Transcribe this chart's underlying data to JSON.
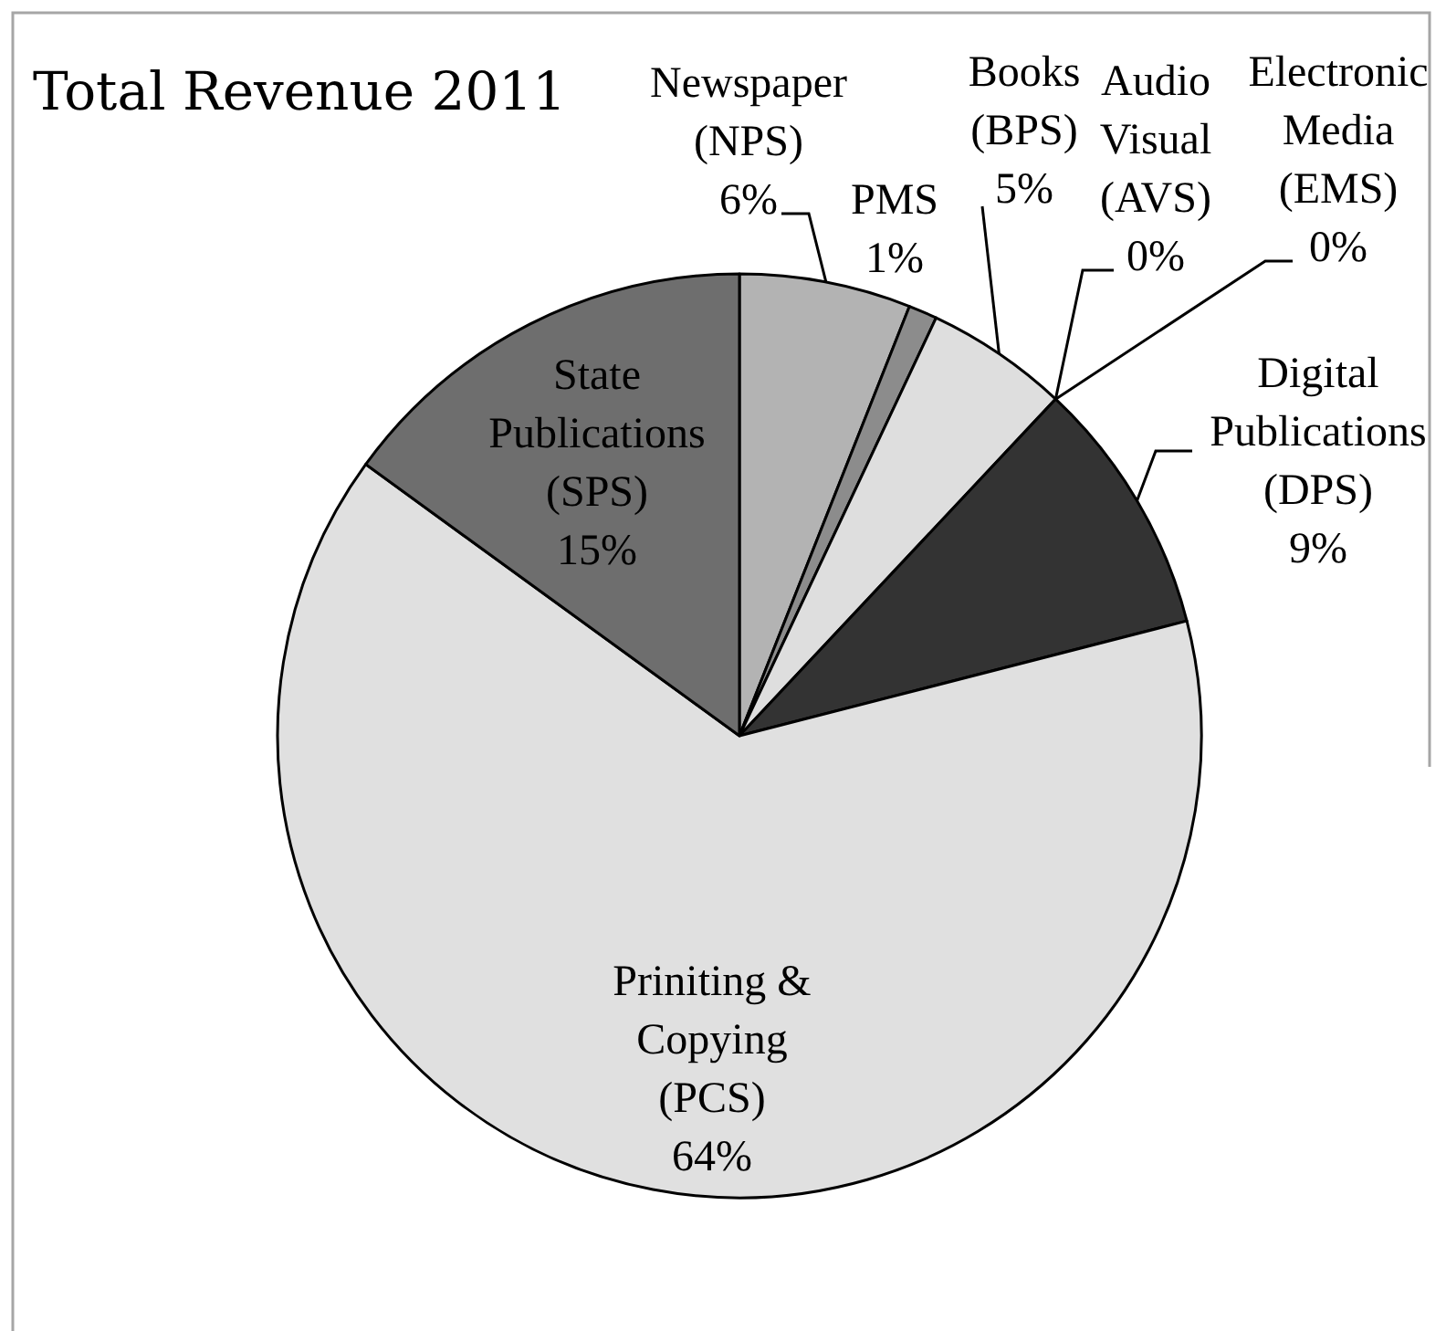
{
  "chart_data": {
    "type": "pie",
    "title": "Total Revenue 2011",
    "categories": [
      "Newspaper (NPS)",
      "PMS",
      "Books (BPS)",
      "Audio Visual (AVS)",
      "Electronic Media (EMS)",
      "Digital Publications (DPS)",
      "Priniting & Copying (PCS)",
      "State Publications (SPS)"
    ],
    "values": [
      6,
      1,
      5,
      0,
      0,
      9,
      64,
      15
    ],
    "value_labels": [
      "6%",
      "1%",
      "5%",
      "0%",
      "0%",
      "9%",
      "64%",
      "15%"
    ],
    "colors": [
      "#b3b3b3",
      "#8c8c8c",
      "#dedede",
      "#b8a9d6",
      "#4d4d4d",
      "#333333",
      "#e0e0e0",
      "#6e6e6e"
    ]
  }
}
